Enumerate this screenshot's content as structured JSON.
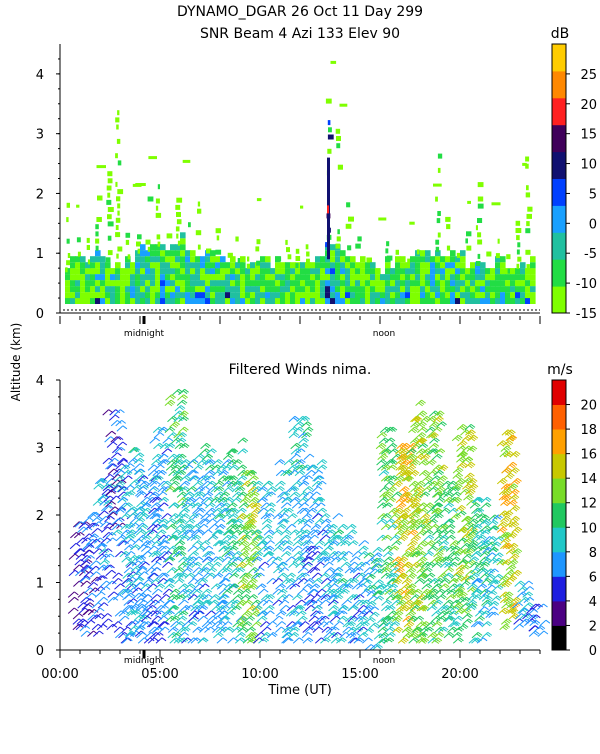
{
  "title": {
    "line1": "DYNAMO_DGAR  26 Oct 11 Day 299",
    "line2": "SNR Beam 4 Azi 133 Elev 90"
  },
  "shared_ylabel": "Altitude (km)",
  "shared_xlabel": "Time (UT)",
  "day_markers": {
    "midnight": "midnight",
    "noon": "noon"
  },
  "chart_data": [
    {
      "type": "heatmap",
      "title": "SNR Beam 4 Azi 133 Elev 90",
      "ylabel": "Altitude (km)",
      "xlim": [
        0,
        24
      ],
      "ylim": [
        0,
        4.5
      ],
      "yticks": [
        "0",
        "1",
        "2",
        "3",
        "4"
      ],
      "colorbar": {
        "unit": "dB",
        "ticks": [
          "-15",
          "-10",
          "-5",
          "0",
          "5",
          "10",
          "15",
          "20",
          "25"
        ],
        "colors": [
          "#7fff00",
          "#22dd44",
          "#20c0a0",
          "#19a0ff",
          "#0040ff",
          "#101070",
          "#40005a",
          "#ff2020",
          "#ff8800",
          "#ffcc00"
        ],
        "range": [
          -15,
          30
        ]
      },
      "columns": [
        {
          "t": 0.5,
          "top": 0.8,
          "tower": 1.8,
          "tone": 0
        },
        {
          "t": 1.0,
          "top": 0.9,
          "tower": 1.2,
          "tone": 1
        },
        {
          "t": 1.5,
          "top": 0.9,
          "tower": 1.4,
          "tone": 1
        },
        {
          "t": 2.0,
          "top": 1.0,
          "tower": 2.0,
          "tone": 2
        },
        {
          "t": 2.5,
          "top": 0.8,
          "tower": 2.3,
          "tone": 2
        },
        {
          "t": 3.0,
          "top": 0.7,
          "tower": 3.4,
          "tone": 1
        },
        {
          "t": 3.5,
          "top": 0.9,
          "tower": 1.6,
          "tone": 2
        },
        {
          "t": 4.0,
          "top": 1.0,
          "tower": 1.3,
          "tone": 2
        },
        {
          "t": 4.5,
          "top": 1.1,
          "tower": 1.9,
          "tone": 2
        },
        {
          "t": 5.0,
          "top": 1.2,
          "tower": 2.2,
          "tone": 3
        },
        {
          "t": 5.5,
          "top": 1.0,
          "tower": 1.4,
          "tone": 2
        },
        {
          "t": 6.0,
          "top": 1.2,
          "tower": 2.0,
          "tone": 2
        },
        {
          "t": 6.5,
          "top": 1.1,
          "tower": 1.6,
          "tone": 2
        },
        {
          "t": 7.0,
          "top": 1.0,
          "tower": 2.0,
          "tone": 2
        },
        {
          "t": 7.5,
          "top": 1.0,
          "tower": 1.2,
          "tone": 2
        },
        {
          "t": 8.0,
          "top": 1.0,
          "tower": 1.4,
          "tone": 2
        },
        {
          "t": 8.5,
          "top": 0.9,
          "tower": 1.0,
          "tone": 2
        },
        {
          "t": 9.0,
          "top": 0.9,
          "tower": 1.3,
          "tone": 2
        },
        {
          "t": 9.5,
          "top": 0.8,
          "tower": 1.0,
          "tone": 1
        },
        {
          "t": 10.0,
          "top": 0.9,
          "tower": 1.2,
          "tone": 1
        },
        {
          "t": 10.5,
          "top": 0.8,
          "tower": 1.0,
          "tone": 1
        },
        {
          "t": 11.0,
          "top": 0.9,
          "tower": 1.2,
          "tone": 1
        },
        {
          "t": 11.5,
          "top": 0.9,
          "tower": 1.3,
          "tone": 1
        },
        {
          "t": 12.0,
          "top": 0.8,
          "tower": 1.0,
          "tone": 1
        },
        {
          "t": 12.5,
          "top": 0.9,
          "tower": 1.2,
          "tone": 1
        },
        {
          "t": 13.0,
          "top": 0.9,
          "tower": 1.1,
          "tone": 1
        },
        {
          "t": 13.5,
          "top": 1.0,
          "tower": 3.6,
          "tone": 4
        },
        {
          "t": 14.0,
          "top": 1.0,
          "tower": 3.2,
          "tone": 2
        },
        {
          "t": 14.5,
          "top": 0.9,
          "tower": 1.8,
          "tone": 1
        },
        {
          "t": 15.0,
          "top": 0.8,
          "tower": 1.2,
          "tone": 1
        },
        {
          "t": 15.5,
          "top": 0.8,
          "tower": 1.0,
          "tone": 1
        },
        {
          "t": 16.0,
          "top": 0.7,
          "tower": 1.0,
          "tone": 1
        },
        {
          "t": 16.5,
          "top": 0.8,
          "tower": 1.2,
          "tone": 1
        },
        {
          "t": 17.0,
          "top": 0.8,
          "tower": 1.0,
          "tone": 1
        },
        {
          "t": 17.5,
          "top": 0.8,
          "tower": 1.0,
          "tone": 1
        },
        {
          "t": 18.0,
          "top": 0.9,
          "tower": 1.1,
          "tone": 1
        },
        {
          "t": 18.5,
          "top": 0.9,
          "tower": 1.3,
          "tone": 2
        },
        {
          "t": 19.0,
          "top": 1.0,
          "tower": 3.0,
          "tone": 2
        },
        {
          "t": 19.5,
          "top": 1.0,
          "tower": 1.6,
          "tone": 2
        },
        {
          "t": 20.0,
          "top": 0.9,
          "tower": 1.2,
          "tone": 2
        },
        {
          "t": 20.5,
          "top": 0.8,
          "tower": 1.4,
          "tone": 1
        },
        {
          "t": 21.0,
          "top": 0.8,
          "tower": 2.4,
          "tone": 2
        },
        {
          "t": 21.5,
          "top": 0.8,
          "tower": 1.0,
          "tone": 1
        },
        {
          "t": 22.0,
          "top": 0.8,
          "tower": 1.2,
          "tone": 1
        },
        {
          "t": 22.5,
          "top": 0.7,
          "tower": 1.0,
          "tone": 1
        },
        {
          "t": 23.0,
          "top": 0.7,
          "tower": 1.8,
          "tone": 1
        },
        {
          "t": 23.5,
          "top": 0.8,
          "tower": 3.1,
          "tone": 1
        }
      ]
    },
    {
      "type": "scatter",
      "title": "Filtered Winds nima.",
      "xlabel": "Time (UT)",
      "ylabel": "Altitude (km)",
      "xlim": [
        0,
        24
      ],
      "ylim": [
        0,
        4
      ],
      "xticks": [
        "00:00",
        "05:00",
        "10:00",
        "15:00",
        "20:00"
      ],
      "yticks": [
        "0",
        "1",
        "2",
        "3",
        "4"
      ],
      "colorbar": {
        "unit": "m/s",
        "ticks": [
          "0",
          "2",
          "4",
          "6",
          "8",
          "10",
          "12",
          "14",
          "16",
          "18",
          "20"
        ],
        "colors": [
          "#000000",
          "#4b0082",
          "#1e1ee0",
          "#1e96ff",
          "#20c8c8",
          "#20c860",
          "#78dc28",
          "#c8c800",
          "#ffa000",
          "#ff6000",
          "#e00000"
        ],
        "range": [
          0,
          22
        ]
      },
      "clusters": [
        {
          "t": 0.8,
          "h0": 0.3,
          "h1": 1.9,
          "speed": 4
        },
        {
          "t": 1.3,
          "h0": 0.2,
          "h1": 2.0,
          "speed": 5
        },
        {
          "t": 2.0,
          "h0": 0.3,
          "h1": 2.5,
          "speed": 6
        },
        {
          "t": 2.5,
          "h0": 1.8,
          "h1": 3.5,
          "speed": 4
        },
        {
          "t": 3.0,
          "h0": 0.1,
          "h1": 2.8,
          "speed": 6
        },
        {
          "t": 3.6,
          "h0": 0.2,
          "h1": 3.0,
          "speed": 7
        },
        {
          "t": 4.2,
          "h0": 0.1,
          "h1": 2.6,
          "speed": 6
        },
        {
          "t": 4.8,
          "h0": 0.1,
          "h1": 3.3,
          "speed": 6
        },
        {
          "t": 5.6,
          "h0": 0.1,
          "h1": 3.8,
          "speed": 9
        },
        {
          "t": 6.3,
          "h0": 0.1,
          "h1": 2.8,
          "speed": 7
        },
        {
          "t": 7.0,
          "h0": 0.1,
          "h1": 3.0,
          "speed": 7
        },
        {
          "t": 7.8,
          "h0": 0.1,
          "h1": 2.8,
          "speed": 8
        },
        {
          "t": 8.5,
          "h0": 0.1,
          "h1": 3.1,
          "speed": 9
        },
        {
          "t": 9.2,
          "h0": 0.1,
          "h1": 2.6,
          "speed": 12
        },
        {
          "t": 10.0,
          "h0": 0.1,
          "h1": 2.5,
          "speed": 7
        },
        {
          "t": 11.0,
          "h0": 0.1,
          "h1": 2.8,
          "speed": 7
        },
        {
          "t": 11.8,
          "h0": 0.1,
          "h1": 3.4,
          "speed": 7
        },
        {
          "t": 12.5,
          "h0": 0.1,
          "h1": 2.8,
          "speed": 6
        },
        {
          "t": 13.3,
          "h0": 0.1,
          "h1": 2.0,
          "speed": 7
        },
        {
          "t": 14.0,
          "h0": 0.1,
          "h1": 1.8,
          "speed": 8
        },
        {
          "t": 14.8,
          "h0": 0.1,
          "h1": 1.6,
          "speed": 7
        },
        {
          "t": 15.5,
          "h0": 0.0,
          "h1": 1.5,
          "speed": 8
        },
        {
          "t": 16.2,
          "h0": 0.1,
          "h1": 3.3,
          "speed": 10
        },
        {
          "t": 17.0,
          "h0": 0.1,
          "h1": 3.0,
          "speed": 14
        },
        {
          "t": 17.7,
          "h0": 0.1,
          "h1": 3.7,
          "speed": 12
        },
        {
          "t": 18.5,
          "h0": 0.1,
          "h1": 3.5,
          "speed": 11
        },
        {
          "t": 19.3,
          "h0": 0.1,
          "h1": 2.5,
          "speed": 10
        },
        {
          "t": 20.0,
          "h0": 0.3,
          "h1": 3.3,
          "speed": 12
        },
        {
          "t": 20.7,
          "h0": 0.1,
          "h1": 2.2,
          "speed": 9
        },
        {
          "t": 21.3,
          "h0": 0.4,
          "h1": 2.0,
          "speed": 8
        },
        {
          "t": 22.2,
          "h0": 0.3,
          "h1": 3.2,
          "speed": 14
        },
        {
          "t": 23.0,
          "h0": 0.3,
          "h1": 1.0,
          "speed": 7
        },
        {
          "t": 23.6,
          "h0": 0.2,
          "h1": 0.6,
          "speed": 6
        }
      ]
    }
  ]
}
